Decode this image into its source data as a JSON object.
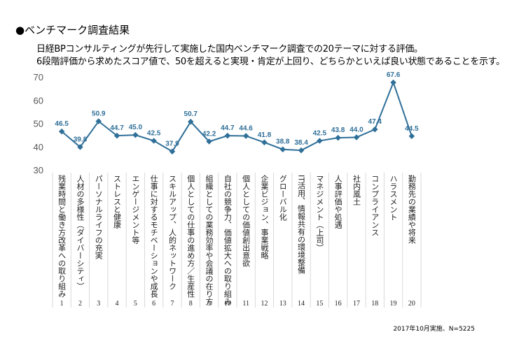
{
  "header": {
    "title": "●ベンチマーク調査結果",
    "description_line1": "日経BPコンサルティングが先行して実施した国内ベンチマーク調査での20テーマに対する評価。",
    "description_line2": "6段階評価から求めたスコア値で、50を超えると実現・肯定が上回り、どちらかといえば良い状態であることを示す。"
  },
  "footnote": "2017年10月実施、N=5225",
  "colors": {
    "line": "#2f6f98",
    "grid": "#d9d9d9"
  },
  "chart_data": {
    "type": "line",
    "title": "",
    "xlabel": "",
    "ylabel": "",
    "ylim": [
      30,
      70
    ],
    "yticks": [
      30,
      40,
      50,
      60,
      70
    ],
    "grid": true,
    "numbers": [
      "1",
      "2",
      "3",
      "4",
      "5",
      "6",
      "7",
      "8",
      "9",
      "10",
      "11",
      "12",
      "13",
      "14",
      "15",
      "16",
      "17",
      "18",
      "19",
      "20"
    ],
    "categories": [
      "残業時間と働き方改革への取り組み",
      "人材の多様性（ダイバーシティ）",
      "パーソナルライフの充実",
      "ストレスと健康",
      "エンゲージメント等",
      "仕事に対するモチベーションや成長",
      "スキルアップ、人的ネットワーク",
      "個人としての仕事の進め方／生産性",
      "組織としての業務効率や会議の在り方",
      "自社の競争力、価値拡大への取り組み",
      "個人としての価値創出意欲",
      "企業ビジョン、事業戦略",
      "グローバル化",
      "IT活用、情報共有の環境整備",
      "マネジメント（上司）",
      "人事評価や処遇",
      "社内風土",
      "コンプライアンス",
      "ハラスメント",
      "勤務先の業績や将来"
    ],
    "values": [
      46.5,
      39.8,
      50.9,
      44.7,
      45.0,
      42.5,
      37.9,
      50.7,
      42.2,
      44.7,
      44.6,
      41.8,
      38.8,
      38.4,
      42.5,
      43.8,
      44.0,
      47.4,
      67.6,
      44.5
    ]
  }
}
